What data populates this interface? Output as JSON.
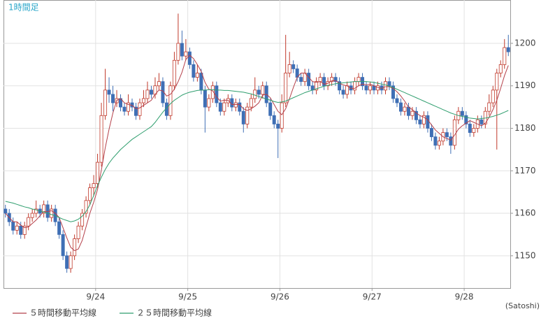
{
  "chart_data": {
    "type": "candlestick",
    "title": "1時間足",
    "unit_label": "(Satoshi)",
    "xlim": [
      0,
      132
    ],
    "xticks": [
      {
        "value": 24,
        "label": "9/24"
      },
      {
        "value": 48,
        "label": "9/25"
      },
      {
        "value": 72,
        "label": "9/26"
      },
      {
        "value": 96,
        "label": "9/27"
      },
      {
        "value": 120,
        "label": "9/28"
      }
    ],
    "ylim": [
      1142.4,
      1210.2
    ],
    "yticks": [
      1150,
      1160,
      1170,
      1180,
      1190,
      1200
    ],
    "grid": true,
    "up_color": "#c0392b",
    "down_color": "#3f6fb5",
    "ohlc": [
      [
        1161,
        1162,
        1159,
        1160
      ],
      [
        1160,
        1161,
        1157,
        1158
      ],
      [
        1158,
        1159,
        1155,
        1156
      ],
      [
        1156,
        1158,
        1155,
        1157
      ],
      [
        1157,
        1158,
        1154,
        1155
      ],
      [
        1155,
        1158,
        1154,
        1157
      ],
      [
        1157,
        1160,
        1156,
        1159
      ],
      [
        1159,
        1161,
        1158,
        1160
      ],
      [
        1160,
        1163,
        1159,
        1161
      ],
      [
        1161,
        1162,
        1159,
        1160
      ],
      [
        1160,
        1163,
        1159,
        1162
      ],
      [
        1162,
        1163,
        1158,
        1159
      ],
      [
        1159,
        1162,
        1158,
        1161
      ],
      [
        1161,
        1162,
        1157,
        1158
      ],
      [
        1158,
        1159,
        1154,
        1155
      ],
      [
        1155,
        1156,
        1149,
        1150
      ],
      [
        1150,
        1151,
        1146,
        1147
      ],
      [
        1147,
        1151,
        1146,
        1150
      ],
      [
        1150,
        1155,
        1149,
        1154
      ],
      [
        1154,
        1158,
        1153,
        1157
      ],
      [
        1157,
        1161,
        1156,
        1160
      ],
      [
        1160,
        1164,
        1159,
        1163
      ],
      [
        1163,
        1167,
        1162,
        1166
      ],
      [
        1166,
        1169,
        1164,
        1167
      ],
      [
        1167,
        1174,
        1166,
        1172
      ],
      [
        1172,
        1186,
        1171,
        1183
      ],
      [
        1183,
        1194,
        1182,
        1189
      ],
      [
        1189,
        1192,
        1186,
        1188
      ],
      [
        1188,
        1190,
        1184,
        1186
      ],
      [
        1186,
        1189,
        1185,
        1187
      ],
      [
        1187,
        1188,
        1184,
        1185
      ],
      [
        1185,
        1186,
        1183,
        1184
      ],
      [
        1184,
        1188,
        1183,
        1186
      ],
      [
        1186,
        1187,
        1184,
        1185
      ],
      [
        1185,
        1186,
        1182,
        1183
      ],
      [
        1183,
        1187,
        1182,
        1186
      ],
      [
        1186,
        1189,
        1185,
        1187
      ],
      [
        1187,
        1191,
        1186,
        1189
      ],
      [
        1189,
        1190,
        1187,
        1188
      ],
      [
        1188,
        1192,
        1187,
        1190
      ],
      [
        1190,
        1193,
        1189,
        1191
      ],
      [
        1191,
        1192,
        1185,
        1186
      ],
      [
        1186,
        1187,
        1182,
        1183
      ],
      [
        1183,
        1191,
        1182,
        1190
      ],
      [
        1190,
        1198,
        1189,
        1196
      ],
      [
        1196,
        1207,
        1195,
        1200
      ],
      [
        1200,
        1203,
        1196,
        1197
      ],
      [
        1197,
        1201,
        1196,
        1198
      ],
      [
        1198,
        1199,
        1194,
        1195
      ],
      [
        1195,
        1196,
        1191,
        1192
      ],
      [
        1192,
        1195,
        1191,
        1193
      ],
      [
        1193,
        1194,
        1188,
        1189
      ],
      [
        1189,
        1190,
        1179,
        1185
      ],
      [
        1185,
        1188,
        1184,
        1187
      ],
      [
        1187,
        1191,
        1186,
        1190
      ],
      [
        1190,
        1191,
        1185,
        1186
      ],
      [
        1186,
        1187,
        1183,
        1184
      ],
      [
        1184,
        1187,
        1183,
        1186
      ],
      [
        1186,
        1188,
        1185,
        1187
      ],
      [
        1187,
        1188,
        1184,
        1185
      ],
      [
        1185,
        1187,
        1184,
        1186
      ],
      [
        1186,
        1187,
        1183,
        1184
      ],
      [
        1184,
        1185,
        1179,
        1181
      ],
      [
        1181,
        1186,
        1180,
        1185
      ],
      [
        1185,
        1188,
        1184,
        1187
      ],
      [
        1187,
        1192,
        1186,
        1189
      ],
      [
        1189,
        1190,
        1187,
        1188
      ],
      [
        1188,
        1191,
        1187,
        1190
      ],
      [
        1190,
        1191,
        1185,
        1186
      ],
      [
        1186,
        1187,
        1182,
        1183
      ],
      [
        1183,
        1184,
        1180,
        1181
      ],
      [
        1181,
        1182,
        1173,
        1180
      ],
      [
        1180,
        1188,
        1179,
        1186
      ],
      [
        1186,
        1202,
        1185,
        1193
      ],
      [
        1193,
        1198,
        1192,
        1195
      ],
      [
        1195,
        1196,
        1193,
        1194
      ],
      [
        1194,
        1195,
        1191,
        1192
      ],
      [
        1192,
        1193,
        1190,
        1191
      ],
      [
        1191,
        1194,
        1190,
        1193
      ],
      [
        1193,
        1194,
        1189,
        1190
      ],
      [
        1190,
        1191,
        1188,
        1189
      ],
      [
        1189,
        1192,
        1188,
        1191
      ],
      [
        1191,
        1193,
        1190,
        1192
      ],
      [
        1192,
        1193,
        1189,
        1190
      ],
      [
        1190,
        1192,
        1189,
        1191
      ],
      [
        1191,
        1193,
        1190,
        1192
      ],
      [
        1192,
        1193,
        1190,
        1191
      ],
      [
        1191,
        1192,
        1188,
        1189
      ],
      [
        1189,
        1190,
        1187,
        1188
      ],
      [
        1188,
        1191,
        1187,
        1190
      ],
      [
        1190,
        1191,
        1188,
        1189
      ],
      [
        1189,
        1192,
        1188,
        1191
      ],
      [
        1191,
        1193,
        1190,
        1192
      ],
      [
        1192,
        1193,
        1189,
        1190
      ],
      [
        1190,
        1191,
        1188,
        1189
      ],
      [
        1189,
        1191,
        1188,
        1190
      ],
      [
        1190,
        1191,
        1188,
        1189
      ],
      [
        1189,
        1191,
        1188,
        1190
      ],
      [
        1190,
        1191,
        1188,
        1189
      ],
      [
        1189,
        1192,
        1188,
        1191
      ],
      [
        1191,
        1192,
        1189,
        1190
      ],
      [
        1190,
        1191,
        1186,
        1187
      ],
      [
        1187,
        1188,
        1185,
        1186
      ],
      [
        1186,
        1187,
        1183,
        1184
      ],
      [
        1184,
        1186,
        1183,
        1185
      ],
      [
        1185,
        1186,
        1182,
        1183
      ],
      [
        1183,
        1185,
        1182,
        1184
      ],
      [
        1184,
        1185,
        1181,
        1182
      ],
      [
        1182,
        1183,
        1180,
        1181
      ],
      [
        1181,
        1184,
        1180,
        1183
      ],
      [
        1183,
        1184,
        1179,
        1180
      ],
      [
        1180,
        1181,
        1177,
        1178
      ],
      [
        1178,
        1179,
        1175,
        1176
      ],
      [
        1176,
        1178,
        1175,
        1177
      ],
      [
        1177,
        1180,
        1176,
        1179
      ],
      [
        1179,
        1180,
        1177,
        1178
      ],
      [
        1178,
        1179,
        1174,
        1176
      ],
      [
        1176,
        1183,
        1175,
        1182
      ],
      [
        1182,
        1185,
        1181,
        1184
      ],
      [
        1184,
        1185,
        1182,
        1183
      ],
      [
        1183,
        1184,
        1180,
        1181
      ],
      [
        1181,
        1182,
        1178,
        1179
      ],
      [
        1179,
        1181,
        1178,
        1180
      ],
      [
        1180,
        1183,
        1179,
        1182
      ],
      [
        1182,
        1183,
        1180,
        1181
      ],
      [
        1181,
        1185,
        1180,
        1184
      ],
      [
        1184,
        1188,
        1183,
        1186
      ],
      [
        1186,
        1190,
        1185,
        1189
      ],
      [
        1189,
        1194,
        1175,
        1193
      ],
      [
        1193,
        1196,
        1192,
        1195
      ],
      [
        1195,
        1201,
        1194,
        1199
      ],
      [
        1199,
        1202,
        1197,
        1198
      ]
    ],
    "series": [
      {
        "name": "５時間移動平均線",
        "color": "#b5404a",
        "values": [
          1160,
          1159,
          1158,
          1158,
          1157.2,
          1156.6,
          1156.8,
          1157.6,
          1158.4,
          1159.4,
          1160.4,
          1160.4,
          1160.6,
          1160.0,
          1159.0,
          1156.6,
          1154.2,
          1152.0,
          1151.2,
          1151.6,
          1153.6,
          1156.8,
          1160.0,
          1162.6,
          1165.6,
          1170.2,
          1175.4,
          1179.8,
          1183.6,
          1186.6,
          1187.0,
          1186.0,
          1185.6,
          1185.4,
          1184.6,
          1184.8,
          1185.4,
          1186.0,
          1186.6,
          1188.0,
          1189.0,
          1188.8,
          1187.6,
          1188.0,
          1189.2,
          1191.0,
          1193.2,
          1196.2,
          1197.2,
          1196.4,
          1195.0,
          1193.4,
          1190.8,
          1189.2,
          1188.8,
          1187.4,
          1186.4,
          1186.6,
          1186.6,
          1185.6,
          1185.6,
          1185.6,
          1184.6,
          1184.2,
          1184.6,
          1185.2,
          1186.0,
          1187.8,
          1188.0,
          1187.2,
          1185.6,
          1184.0,
          1183.2,
          1184.6,
          1187.0,
          1189.6,
          1192.0,
          1193.0,
          1193.0,
          1192.0,
          1191.0,
          1190.8,
          1191.0,
          1190.4,
          1190.6,
          1191.2,
          1191.2,
          1190.6,
          1190.2,
          1190.0,
          1189.4,
          1189.4,
          1190.0,
          1190.4,
          1190.2,
          1190.4,
          1190.0,
          1189.6,
          1189.4,
          1189.8,
          1189.8,
          1189.4,
          1188.6,
          1187.6,
          1186.4,
          1185.0,
          1184.4,
          1183.6,
          1183.0,
          1182.6,
          1182.0,
          1180.8,
          1179.6,
          1178.8,
          1178.0,
          1177.6,
          1177.2,
          1178.4,
          1179.8,
          1180.6,
          1181.2,
          1181.8,
          1181.4,
          1181.0,
          1180.6,
          1181.2,
          1182.6,
          1184.4,
          1186.6,
          1189.4,
          1192.4,
          1194.8
        ]
      },
      {
        "name": "２５時間移動平均線",
        "color": "#2f9e6e",
        "values": [
          1162.8,
          1162.6,
          1162.4,
          1162.1,
          1161.8,
          1161.5,
          1161.3,
          1161.0,
          1160.8,
          1160.5,
          1160.3,
          1160.0,
          1159.7,
          1159.4,
          1159.0,
          1158.6,
          1158.3,
          1158.0,
          1158.2,
          1158.6,
          1159.3,
          1160.4,
          1162.0,
          1164.2,
          1166.5,
          1168.5,
          1170.3,
          1171.8,
          1173.0,
          1174.0,
          1175.0,
          1175.8,
          1176.6,
          1177.4,
          1178.0,
          1178.6,
          1179.2,
          1179.8,
          1180.4,
          1181.4,
          1182.6,
          1183.8,
          1184.8,
          1185.8,
          1186.6,
          1187.2,
          1187.8,
          1188.2,
          1188.5,
          1188.7,
          1188.9,
          1189.0,
          1189.0,
          1189.1,
          1189.1,
          1189.0,
          1189.0,
          1188.9,
          1188.9,
          1188.8,
          1188.7,
          1188.6,
          1188.5,
          1188.3,
          1188.1,
          1187.8,
          1187.5,
          1187.2,
          1186.9,
          1186.6,
          1186.3,
          1186.1,
          1186.2,
          1186.4,
          1186.8,
          1187.2,
          1187.6,
          1188.0,
          1188.4,
          1188.7,
          1189.0,
          1189.3,
          1189.6,
          1189.9,
          1190.1,
          1190.3,
          1190.5,
          1190.6,
          1190.7,
          1190.8,
          1190.9,
          1191.0,
          1191.0,
          1191.0,
          1191.0,
          1190.9,
          1190.8,
          1190.6,
          1190.4,
          1190.2,
          1189.9,
          1189.6,
          1189.2,
          1188.8,
          1188.4,
          1188.0,
          1187.6,
          1187.2,
          1186.8,
          1186.4,
          1186.0,
          1185.6,
          1185.2,
          1184.8,
          1184.4,
          1184.0,
          1183.6,
          1183.3,
          1183.0,
          1182.8,
          1182.6,
          1182.4,
          1182.3,
          1182.2,
          1182.3,
          1182.4,
          1182.6,
          1182.8,
          1183.1,
          1183.4,
          1183.8,
          1184.2
        ]
      }
    ]
  }
}
